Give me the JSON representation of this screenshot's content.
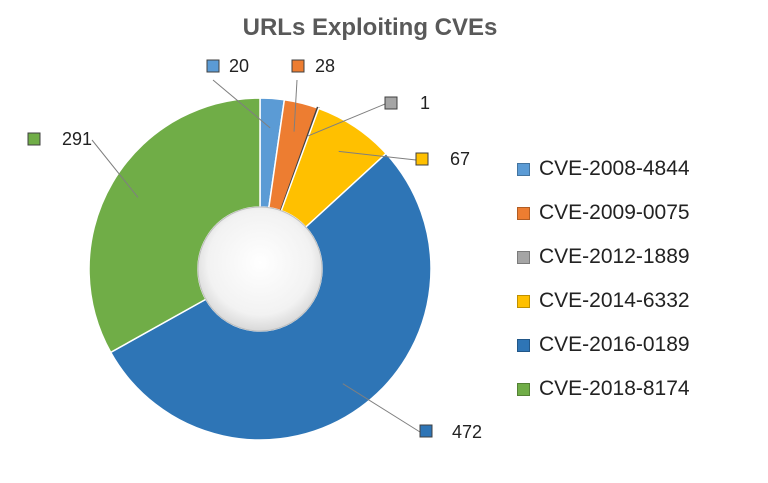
{
  "chart_data": {
    "type": "pie",
    "title": "URLs Exploiting CVEs",
    "categories": [
      "CVE-2008-4844",
      "CVE-2009-0075",
      "CVE-2012-1889",
      "CVE-2014-6332",
      "CVE-2016-0189",
      "CVE-2018-8174"
    ],
    "values": [
      20,
      28,
      1,
      67,
      472,
      291
    ],
    "colors": [
      "#5B9BD5",
      "#ED7D31",
      "#A5A5A5",
      "#FFC000",
      "#2E75B6",
      "#70AD47"
    ],
    "donut": true,
    "legend_position": "right"
  }
}
